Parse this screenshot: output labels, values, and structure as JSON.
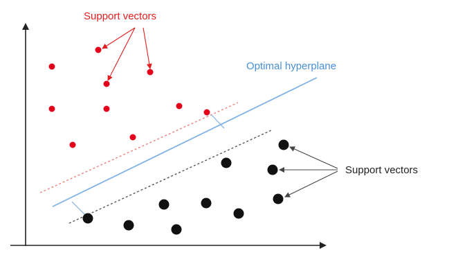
{
  "labels": {
    "support_vectors_top": "Support vectors",
    "optimal_hyperplane": "Optimal hyperplane",
    "support_vectors_right": "Support vectors"
  },
  "colors": {
    "red_class": "#e3001b",
    "black_class": "#111111",
    "hyperplane": "#7fb2e5",
    "margin_red": "#e8837f",
    "margin_black": "#555555",
    "axis": "#222222",
    "callout_red": "#e02020",
    "callout_black": "#444444"
  }
}
